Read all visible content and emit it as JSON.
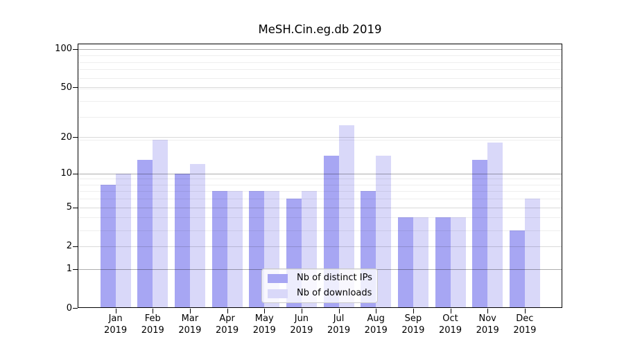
{
  "chart_data": {
    "type": "bar",
    "title": "MeSH.Cin.eg.db 2019",
    "categories": [
      "Jan 2019",
      "Feb 2019",
      "Mar 2019",
      "Apr 2019",
      "May 2019",
      "Jun 2019",
      "Jul 2019",
      "Aug 2019",
      "Sep 2019",
      "Oct 2019",
      "Nov 2019",
      "Dec 2019"
    ],
    "x_tick_line1": [
      "Jan",
      "Feb",
      "Mar",
      "Apr",
      "May",
      "Jun",
      "Jul",
      "Aug",
      "Sep",
      "Oct",
      "Nov",
      "Dec"
    ],
    "x_tick_line2": "2019",
    "series": [
      {
        "name": "Nb of distinct IPs",
        "color": "#a7a6f3",
        "values": [
          8,
          13,
          10,
          7,
          7,
          6,
          14,
          7,
          4,
          4,
          13,
          3
        ]
      },
      {
        "name": "Nb of downloads",
        "color": "#d9d8f9",
        "values": [
          10,
          19,
          12,
          7,
          7,
          7,
          25,
          14,
          4,
          4,
          18,
          6
        ]
      }
    ],
    "yscale": "log1p",
    "ylim": [
      0,
      110
    ],
    "yticks": [
      0,
      1,
      2,
      5,
      10,
      20,
      50,
      100
    ],
    "ytick_labels": [
      "0",
      "1",
      "2",
      "5",
      "10",
      "20",
      "50",
      "100"
    ],
    "major_gridlines": [
      1,
      10,
      100
    ],
    "mid_gridlines": [
      2,
      5,
      20,
      50
    ],
    "minor_gridlines": [
      3,
      4,
      6,
      7,
      8,
      9,
      19,
      29,
      39,
      49,
      59,
      69,
      79,
      89
    ],
    "grid": true,
    "legend_position": "lower center",
    "axis_color": "#000000",
    "background_color": "#ffffff"
  }
}
